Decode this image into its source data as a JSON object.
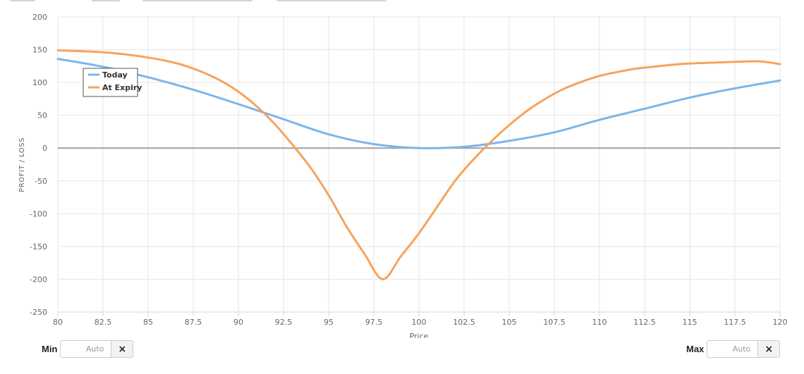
{
  "chart_data": {
    "type": "line",
    "xlabel": "Price",
    "ylabel": "PROFIT / LOSS",
    "xlim": [
      80,
      120
    ],
    "ylim": [
      -250,
      200
    ],
    "x_ticks": [
      "80",
      "82.5",
      "85",
      "87.5",
      "90",
      "92.5",
      "95",
      "97.5",
      "100",
      "102.5",
      "105",
      "107.5",
      "110",
      "112.5",
      "115",
      "117.5",
      "120"
    ],
    "y_ticks": [
      "200",
      "150",
      "100",
      "50",
      "0",
      "-50",
      "-100",
      "-150",
      "-200",
      "-250"
    ],
    "grid": true,
    "legend_position": "top-left",
    "series": [
      {
        "name": "Today",
        "color": "#7cb5ec",
        "x": [
          80,
          82.5,
          85,
          87.5,
          90,
          92.5,
          95,
          97.5,
          100,
          102.5,
          105,
          107.5,
          110,
          112.5,
          115,
          117.5,
          120
        ],
        "y": [
          136,
          124,
          108,
          89,
          67,
          44,
          21,
          6,
          0,
          2,
          11,
          24,
          43,
          60,
          77,
          91,
          103
        ]
      },
      {
        "name": "At Expiry",
        "color": "#f7a35c",
        "x": [
          80,
          81,
          82,
          83,
          84,
          85,
          86,
          87,
          88,
          89,
          90,
          91,
          92,
          93,
          94,
          95,
          96,
          97,
          98,
          99,
          100,
          101,
          102,
          103,
          104,
          105,
          106,
          107,
          108,
          109,
          110,
          111,
          112,
          113,
          114,
          115,
          116,
          117,
          118,
          119,
          120
        ],
        "y": [
          149,
          148,
          147,
          145,
          142,
          138,
          133,
          126,
          116,
          103,
          86,
          64,
          37,
          5,
          -30,
          -72,
          -120,
          -162,
          -200,
          -165,
          -130,
          -90,
          -50,
          -18,
          10,
          35,
          57,
          75,
          90,
          101,
          110,
          116,
          121,
          124,
          127,
          129,
          130,
          131,
          132,
          132,
          128
        ]
      }
    ]
  },
  "controls": {
    "min": {
      "label": "Min",
      "placeholder": "Auto",
      "clear_icon": "×",
      "clear_icon_name": "x-icon"
    },
    "max": {
      "label": "Max",
      "placeholder": "Auto",
      "clear_icon": "×",
      "clear_icon_name": "x-icon"
    }
  }
}
